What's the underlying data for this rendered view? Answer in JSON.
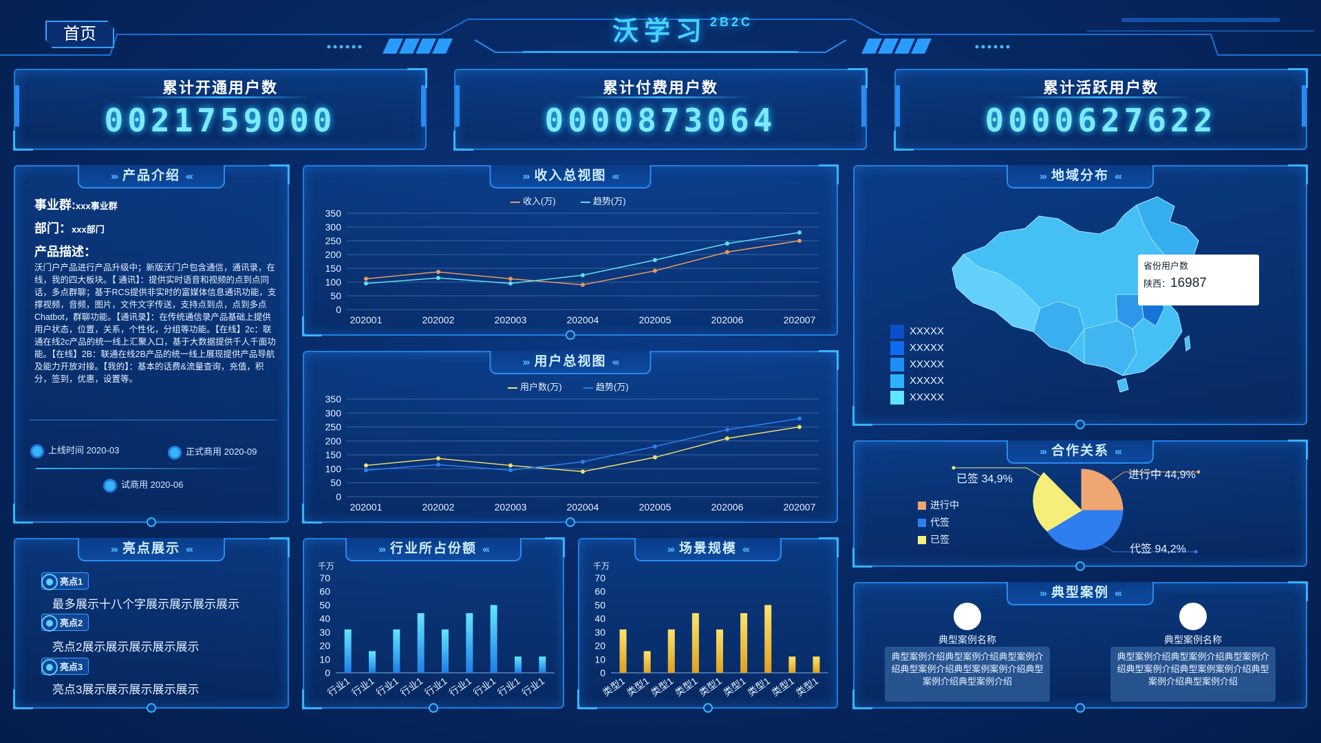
{
  "header": {
    "home_label": "首页",
    "title": "沃学习",
    "title_sup": "2B2C"
  },
  "kpis": [
    {
      "label": "累计开通用户数",
      "value": "0021759000"
    },
    {
      "label": "累计付费用户数",
      "value": "0000873064"
    },
    {
      "label": "累计活跃用户数",
      "value": "0000627622"
    }
  ],
  "product": {
    "title": "产品介绍",
    "group_label": "事业群:",
    "group_value": "xxx事业群",
    "dept_label": "部门：",
    "dept_value": "xxx部门",
    "desc_label": "产品描述：",
    "desc": "沃门户产品进行产品升级中；新版沃门户包含通信，通讯录，在线，我的四大板块。【 通讯】：提供实时语音和视频的点到点同话，多点群聊；基于RCS提供非实时的富媒体信息通讯功能，支撑视频，音频，图片，文件文字传送，支持点到点，点到多点Chatbot，群聊功能。【通讯录】：在传统通信录产品基础上提供用户状态，位置，关系，个性化，分组等功能。【在线】2c：联通在线2c产品的统一线上汇聚入口，基于大数据提供千人千面功能。【在线】2B：联通在线2B产品的统一线上展现提供产品导航及能力开放对接。【我的】：基本的话费&流量查询，充值，积分，签到，优惠，设置等。",
    "timeline": [
      "上线时间 2020-03",
      "正式商用 2020-09",
      "试商用 2020-06"
    ]
  },
  "highlights": {
    "title": "亮点展示",
    "items": [
      {
        "tag": "亮点1",
        "text": "最多展示十八个字展示展示展示展示"
      },
      {
        "tag": "亮点2",
        "text": "亮点2展示展示展示展示展示"
      },
      {
        "tag": "亮点3",
        "text": "亮点3展示展示展示展示展示"
      }
    ]
  },
  "region": {
    "title": "地域分布",
    "legend": [
      "XXXXX",
      "XXXXX",
      "XXXXX",
      "XXXXX",
      "XXXXX"
    ],
    "legend_colors": [
      "#0b4fc9",
      "#0f6cf0",
      "#1e8ef5",
      "#2db2fb",
      "#5de4ff"
    ],
    "tooltip_title": "省份用户数",
    "tooltip_province": "陕西：",
    "tooltip_value": "16987"
  },
  "cooperation": {
    "title": "合作关系",
    "legend": [
      {
        "name": "进行中",
        "color": "#f0a670"
      },
      {
        "name": "代签",
        "color": "#2f7ef0"
      },
      {
        "name": "已签",
        "color": "#f5ee7a"
      }
    ],
    "labels": {
      "signed": "已签 34,9%",
      "progress": "进行中 44,9%",
      "pending": "代签 94,2%"
    }
  },
  "cases": {
    "title": "典型案例",
    "items": [
      {
        "name": "典型案例名称",
        "text": "典型案例介绍典型案例介绍典型案例介绍典型案例介绍典型案例案例介绍典型案例介绍典型案例介绍"
      },
      {
        "name": "典型案例名称",
        "text": "典型案例介绍典型案例介绍典型案例介绍典型案例介绍典型案例案例介绍典型案例介绍典型案例介绍"
      }
    ]
  },
  "chart_data": [
    {
      "type": "line",
      "title": "收入总视图",
      "x": [
        "202001",
        "202002",
        "202003",
        "202004",
        "202005",
        "202006",
        "202007"
      ],
      "ylim": [
        0,
        350
      ],
      "yticks": [
        0,
        50,
        100,
        150,
        200,
        250,
        300,
        350
      ],
      "series": [
        {
          "name": "收入(万)",
          "color": "#e89a5e",
          "values": [
            112,
            137,
            112,
            90,
            141,
            209,
            250
          ]
        },
        {
          "name": "趋势(万)",
          "color": "#5fe0f0",
          "values": [
            95,
            115,
            95,
            125,
            180,
            240,
            280
          ]
        }
      ]
    },
    {
      "type": "line",
      "title": "用户总视图",
      "x": [
        "202001",
        "202002",
        "202003",
        "202004",
        "202005",
        "202006",
        "202007"
      ],
      "ylim": [
        0,
        350
      ],
      "yticks": [
        0,
        50,
        100,
        150,
        200,
        250,
        300,
        350
      ],
      "series": [
        {
          "name": "用户数(万)",
          "color": "#f2e06a",
          "values": [
            112,
            137,
            112,
            90,
            141,
            209,
            250
          ]
        },
        {
          "name": "趋势(万)",
          "color": "#2f7ef0",
          "values": [
            95,
            115,
            95,
            125,
            180,
            240,
            280
          ]
        }
      ]
    },
    {
      "type": "bar",
      "title": "行业所占份额",
      "unit": "千万",
      "ylim": [
        0,
        70
      ],
      "yticks": [
        0,
        10,
        20,
        30,
        40,
        50,
        60,
        70
      ],
      "categories": [
        "行业1",
        "行业1",
        "行业1",
        "行业1",
        "行业1",
        "行业1",
        "行业1",
        "行业1",
        "行业1"
      ],
      "values": [
        32,
        16,
        32,
        44,
        32,
        44,
        50,
        12,
        12
      ],
      "color_top": "#63e6ff",
      "color_bottom": "#1f7ee8"
    },
    {
      "type": "bar",
      "title": "场景规模",
      "unit": "千万",
      "ylim": [
        0,
        70
      ],
      "yticks": [
        0,
        10,
        20,
        30,
        40,
        50,
        60,
        70
      ],
      "categories": [
        "类型1",
        "类型1",
        "类型1",
        "类型1",
        "类型1",
        "类型1",
        "类型1",
        "类型1",
        "类型1"
      ],
      "values": [
        32,
        16,
        32,
        44,
        32,
        44,
        50,
        12,
        12
      ],
      "color_top": "#ffe36a",
      "color_bottom": "#e0a020"
    },
    {
      "type": "pie",
      "title": "合作关系",
      "categories": [
        "进行中",
        "代签",
        "已签"
      ],
      "values": [
        44.9,
        94.2,
        34.9
      ]
    }
  ]
}
